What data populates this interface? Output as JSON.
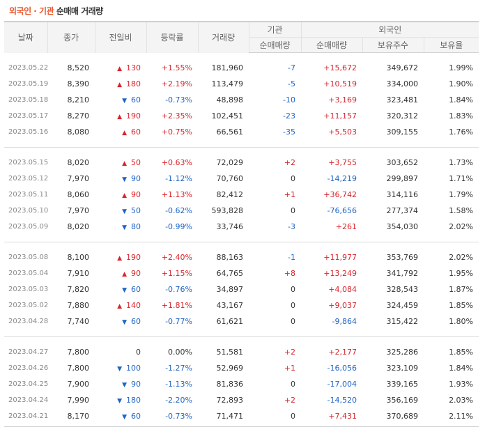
{
  "title": {
    "part1": "외국인 · 기관",
    "part2": "순매매 거래량"
  },
  "colors": {
    "up": "#d8232a",
    "down": "#1f63c4",
    "accent": "#e8552a"
  },
  "headers": {
    "date": "날짜",
    "close": "종가",
    "change": "전일비",
    "rate": "등락률",
    "volume": "거래량",
    "inst": "기관",
    "inst_net": "순매매량",
    "foreign": "외국인",
    "foreign_net": "순매매량",
    "foreign_hold": "보유주수",
    "foreign_ratio": "보유율"
  },
  "groups": [
    [
      {
        "date": "2023.05.22",
        "close": "8,520",
        "dir": "up",
        "change": "130",
        "rate": "+1.55%",
        "volume": "181,960",
        "inst": "-7",
        "foreign": "+15,672",
        "hold": "349,672",
        "ratio": "1.99%"
      },
      {
        "date": "2023.05.19",
        "close": "8,390",
        "dir": "up",
        "change": "180",
        "rate": "+2.19%",
        "volume": "113,479",
        "inst": "-5",
        "foreign": "+10,519",
        "hold": "334,000",
        "ratio": "1.90%"
      },
      {
        "date": "2023.05.18",
        "close": "8,210",
        "dir": "down",
        "change": "60",
        "rate": "-0.73%",
        "volume": "48,898",
        "inst": "-10",
        "foreign": "+3,169",
        "hold": "323,481",
        "ratio": "1.84%"
      },
      {
        "date": "2023.05.17",
        "close": "8,270",
        "dir": "up",
        "change": "190",
        "rate": "+2.35%",
        "volume": "102,451",
        "inst": "-23",
        "foreign": "+11,157",
        "hold": "320,312",
        "ratio": "1.83%"
      },
      {
        "date": "2023.05.16",
        "close": "8,080",
        "dir": "up",
        "change": "60",
        "rate": "+0.75%",
        "volume": "66,561",
        "inst": "-35",
        "foreign": "+5,503",
        "hold": "309,155",
        "ratio": "1.76%"
      }
    ],
    [
      {
        "date": "2023.05.15",
        "close": "8,020",
        "dir": "up",
        "change": "50",
        "rate": "+0.63%",
        "volume": "72,029",
        "inst": "+2",
        "foreign": "+3,755",
        "hold": "303,652",
        "ratio": "1.73%"
      },
      {
        "date": "2023.05.12",
        "close": "7,970",
        "dir": "down",
        "change": "90",
        "rate": "-1.12%",
        "volume": "70,760",
        "inst": "0",
        "foreign": "-14,219",
        "hold": "299,897",
        "ratio": "1.71%"
      },
      {
        "date": "2023.05.11",
        "close": "8,060",
        "dir": "up",
        "change": "90",
        "rate": "+1.13%",
        "volume": "82,412",
        "inst": "+1",
        "foreign": "+36,742",
        "hold": "314,116",
        "ratio": "1.79%"
      },
      {
        "date": "2023.05.10",
        "close": "7,970",
        "dir": "down",
        "change": "50",
        "rate": "-0.62%",
        "volume": "593,828",
        "inst": "0",
        "foreign": "-76,656",
        "hold": "277,374",
        "ratio": "1.58%"
      },
      {
        "date": "2023.05.09",
        "close": "8,020",
        "dir": "down",
        "change": "80",
        "rate": "-0.99%",
        "volume": "33,746",
        "inst": "-3",
        "foreign": "+261",
        "hold": "354,030",
        "ratio": "2.02%"
      }
    ],
    [
      {
        "date": "2023.05.08",
        "close": "8,100",
        "dir": "up",
        "change": "190",
        "rate": "+2.40%",
        "volume": "88,163",
        "inst": "-1",
        "foreign": "+11,977",
        "hold": "353,769",
        "ratio": "2.02%"
      },
      {
        "date": "2023.05.04",
        "close": "7,910",
        "dir": "up",
        "change": "90",
        "rate": "+1.15%",
        "volume": "64,765",
        "inst": "+8",
        "foreign": "+13,249",
        "hold": "341,792",
        "ratio": "1.95%"
      },
      {
        "date": "2023.05.03",
        "close": "7,820",
        "dir": "down",
        "change": "60",
        "rate": "-0.76%",
        "volume": "34,897",
        "inst": "0",
        "foreign": "+4,084",
        "hold": "328,543",
        "ratio": "1.87%"
      },
      {
        "date": "2023.05.02",
        "close": "7,880",
        "dir": "up",
        "change": "140",
        "rate": "+1.81%",
        "volume": "43,167",
        "inst": "0",
        "foreign": "+9,037",
        "hold": "324,459",
        "ratio": "1.85%"
      },
      {
        "date": "2023.04.28",
        "close": "7,740",
        "dir": "down",
        "change": "60",
        "rate": "-0.77%",
        "volume": "61,621",
        "inst": "0",
        "foreign": "-9,864",
        "hold": "315,422",
        "ratio": "1.80%"
      }
    ],
    [
      {
        "date": "2023.04.27",
        "close": "7,800",
        "dir": "none",
        "change": "0",
        "rate": "0.00%",
        "volume": "51,581",
        "inst": "+2",
        "foreign": "+2,177",
        "hold": "325,286",
        "ratio": "1.85%"
      },
      {
        "date": "2023.04.26",
        "close": "7,800",
        "dir": "down",
        "change": "100",
        "rate": "-1.27%",
        "volume": "52,969",
        "inst": "+1",
        "foreign": "-16,056",
        "hold": "323,109",
        "ratio": "1.84%"
      },
      {
        "date": "2023.04.25",
        "close": "7,900",
        "dir": "down",
        "change": "90",
        "rate": "-1.13%",
        "volume": "81,836",
        "inst": "0",
        "foreign": "-17,004",
        "hold": "339,165",
        "ratio": "1.93%"
      },
      {
        "date": "2023.04.24",
        "close": "7,990",
        "dir": "down",
        "change": "180",
        "rate": "-2.20%",
        "volume": "72,893",
        "inst": "+2",
        "foreign": "-14,520",
        "hold": "356,169",
        "ratio": "2.03%"
      },
      {
        "date": "2023.04.21",
        "close": "8,170",
        "dir": "down",
        "change": "60",
        "rate": "-0.73%",
        "volume": "71,471",
        "inst": "0",
        "foreign": "+7,431",
        "hold": "370,689",
        "ratio": "2.11%"
      }
    ]
  ]
}
